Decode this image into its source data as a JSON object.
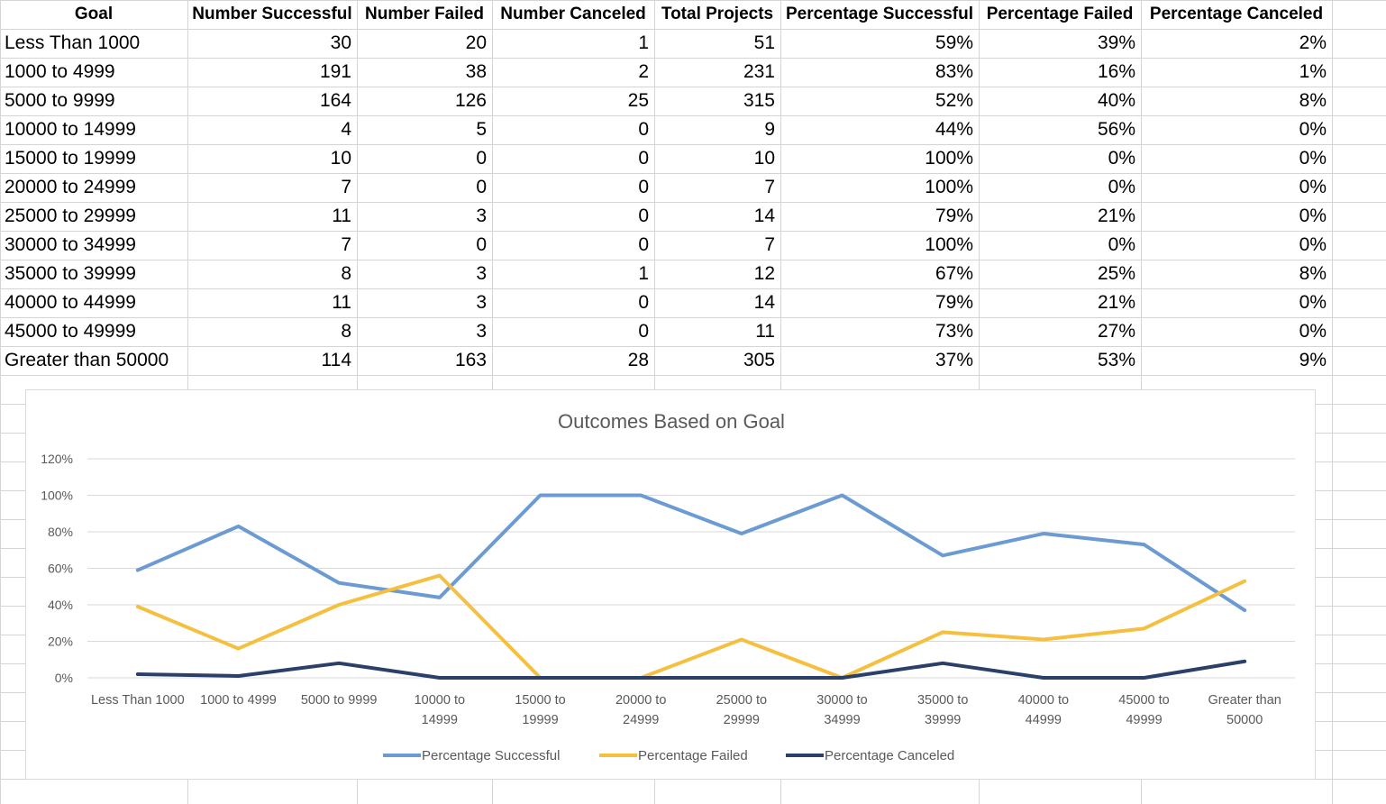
{
  "sheet": {
    "headers": [
      "Goal",
      "Number Successful",
      "Number Failed",
      "Number Canceled",
      "Total Projects",
      "Percentage Successful",
      "Percentage Failed",
      "Percentage Canceled"
    ],
    "rows": [
      [
        "Less Than 1000",
        "30",
        "20",
        "1",
        "51",
        "59%",
        "39%",
        "2%"
      ],
      [
        "1000 to 4999",
        "191",
        "38",
        "2",
        "231",
        "83%",
        "16%",
        "1%"
      ],
      [
        "5000 to 9999",
        "164",
        "126",
        "25",
        "315",
        "52%",
        "40%",
        "8%"
      ],
      [
        "10000 to 14999",
        "4",
        "5",
        "0",
        "9",
        "44%",
        "56%",
        "0%"
      ],
      [
        "15000 to 19999",
        "10",
        "0",
        "0",
        "10",
        "100%",
        "0%",
        "0%"
      ],
      [
        "20000 to 24999",
        "7",
        "0",
        "0",
        "7",
        "100%",
        "0%",
        "0%"
      ],
      [
        "25000 to 29999",
        "11",
        "3",
        "0",
        "14",
        "79%",
        "21%",
        "0%"
      ],
      [
        "30000 to 34999",
        "7",
        "0",
        "0",
        "7",
        "100%",
        "0%",
        "0%"
      ],
      [
        "35000 to 39999",
        "8",
        "3",
        "1",
        "12",
        "67%",
        "25%",
        "8%"
      ],
      [
        "40000 to 44999",
        "11",
        "3",
        "0",
        "14",
        "79%",
        "21%",
        "0%"
      ],
      [
        "45000 to 49999",
        "8",
        "3",
        "0",
        "11",
        "73%",
        "27%",
        "0%"
      ],
      [
        "Greater than 50000",
        "114",
        "163",
        "28",
        "305",
        "37%",
        "53%",
        "9%"
      ]
    ]
  },
  "chart_data": {
    "type": "line",
    "title": "Outcomes Based on Goal",
    "xlabel": "",
    "ylabel": "",
    "categories": [
      [
        "Less Than 1000"
      ],
      [
        "1000 to 4999"
      ],
      [
        "5000 to 9999"
      ],
      [
        "10000 to",
        "14999"
      ],
      [
        "15000 to",
        "19999"
      ],
      [
        "20000 to",
        "24999"
      ],
      [
        "25000 to",
        "29999"
      ],
      [
        "30000 to",
        "34999"
      ],
      [
        "35000 to",
        "39999"
      ],
      [
        "40000 to",
        "44999"
      ],
      [
        "45000 to",
        "49999"
      ],
      [
        "Greater than",
        "50000"
      ]
    ],
    "y_ticks": [
      "0%",
      "20%",
      "40%",
      "60%",
      "80%",
      "100%",
      "120%"
    ],
    "ylim": [
      0,
      1.2
    ],
    "grid": true,
    "legend_position": "bottom",
    "series": [
      {
        "name": "Percentage Successful",
        "color": "#6b9bd2",
        "values": [
          0.59,
          0.83,
          0.52,
          0.44,
          1.0,
          1.0,
          0.79,
          1.0,
          0.67,
          0.79,
          0.73,
          0.37
        ]
      },
      {
        "name": "Percentage Failed",
        "color": "#f5c040",
        "values": [
          0.39,
          0.16,
          0.4,
          0.56,
          0.0,
          0.0,
          0.21,
          0.0,
          0.25,
          0.21,
          0.27,
          0.53
        ]
      },
      {
        "name": "Percentage Canceled",
        "color": "#2b3f6b",
        "values": [
          0.02,
          0.01,
          0.08,
          0.0,
          0.0,
          0.0,
          0.0,
          0.0,
          0.08,
          0.0,
          0.0,
          0.09
        ]
      }
    ]
  }
}
